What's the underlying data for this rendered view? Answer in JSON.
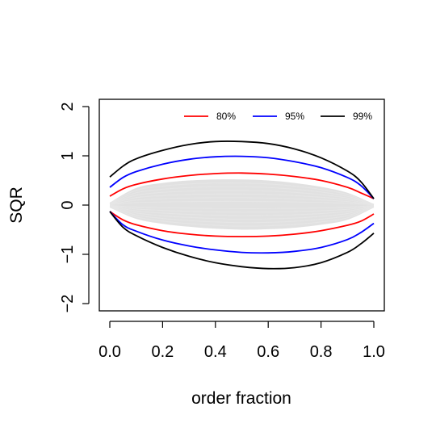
{
  "chart_data": {
    "type": "line",
    "xlabel": "order fraction",
    "ylabel": "SQR",
    "xlim": [
      0.0,
      1.0
    ],
    "ylim": [
      -2,
      2
    ],
    "x_ticks": [
      "0.0",
      "0.2",
      "0.4",
      "0.6",
      "0.8",
      "1.0"
    ],
    "y_ticks": [
      "−2",
      "−1",
      "0",
      "1",
      "2"
    ],
    "grid": false,
    "legend_position": "top-right",
    "background_band": {
      "description": "grey simulated residual curves",
      "color": "#c8c8c8",
      "x": [
        0.0,
        0.1,
        0.2,
        0.3,
        0.4,
        0.5,
        0.6,
        0.7,
        0.8,
        0.9,
        1.0
      ],
      "upper": [
        0.05,
        0.35,
        0.45,
        0.5,
        0.52,
        0.52,
        0.5,
        0.45,
        0.37,
        0.25,
        0.02
      ],
      "lower": [
        -0.05,
        -0.28,
        -0.38,
        -0.44,
        -0.48,
        -0.5,
        -0.49,
        -0.46,
        -0.4,
        -0.3,
        -0.05
      ]
    },
    "series": [
      {
        "name": "80%",
        "color": "#ff0000",
        "x": [
          0.0,
          0.05,
          0.1,
          0.2,
          0.3,
          0.4,
          0.5,
          0.6,
          0.7,
          0.8,
          0.9,
          0.95,
          1.0
        ],
        "upper": [
          0.18,
          0.33,
          0.42,
          0.53,
          0.6,
          0.64,
          0.65,
          0.63,
          0.58,
          0.5,
          0.36,
          0.25,
          0.13
        ],
        "lower": [
          -0.13,
          -0.3,
          -0.4,
          -0.52,
          -0.59,
          -0.63,
          -0.64,
          -0.63,
          -0.59,
          -0.52,
          -0.41,
          -0.33,
          -0.18
        ]
      },
      {
        "name": "95%",
        "color": "#0000ff",
        "x": [
          0.0,
          0.05,
          0.1,
          0.2,
          0.3,
          0.4,
          0.5,
          0.6,
          0.7,
          0.8,
          0.9,
          0.95,
          1.0
        ],
        "upper": [
          0.36,
          0.56,
          0.68,
          0.83,
          0.93,
          0.98,
          0.99,
          0.96,
          0.88,
          0.76,
          0.56,
          0.4,
          0.13
        ],
        "lower": [
          -0.13,
          -0.4,
          -0.53,
          -0.71,
          -0.83,
          -0.91,
          -0.96,
          -0.97,
          -0.94,
          -0.86,
          -0.7,
          -0.56,
          -0.37
        ]
      },
      {
        "name": "99%",
        "color": "#000000",
        "x": [
          0.0,
          0.05,
          0.1,
          0.2,
          0.3,
          0.4,
          0.5,
          0.6,
          0.7,
          0.8,
          0.9,
          0.95,
          1.0
        ],
        "upper": [
          0.57,
          0.79,
          0.94,
          1.11,
          1.23,
          1.29,
          1.29,
          1.25,
          1.14,
          0.96,
          0.69,
          0.48,
          0.13
        ],
        "lower": [
          -0.13,
          -0.45,
          -0.62,
          -0.86,
          -1.04,
          -1.17,
          -1.25,
          -1.29,
          -1.27,
          -1.17,
          -0.96,
          -0.79,
          -0.57
        ]
      }
    ]
  }
}
